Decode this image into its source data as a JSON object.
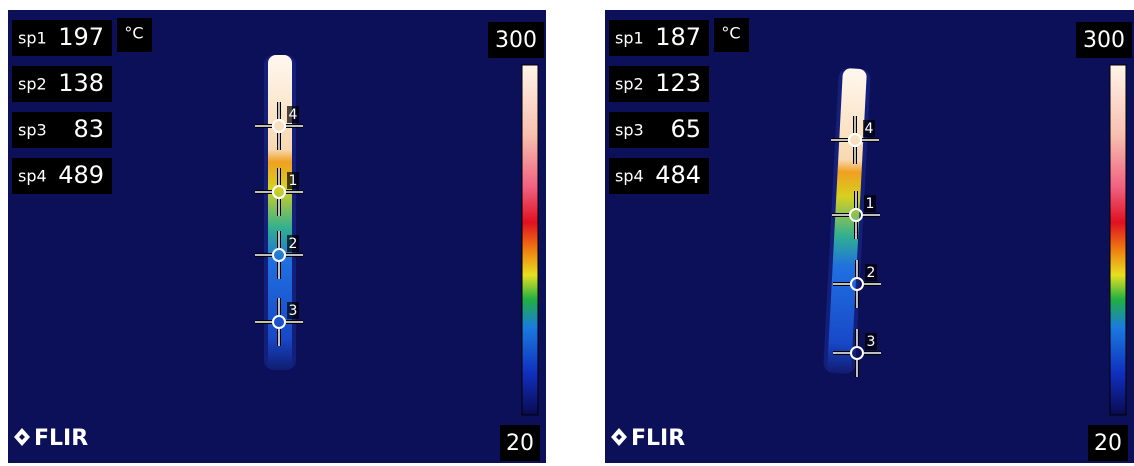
{
  "panels": [
    {
      "spots": [
        {
          "label": "sp1",
          "value": 197
        },
        {
          "label": "sp2",
          "value": 138
        },
        {
          "label": "sp3",
          "value": 83
        },
        {
          "label": "sp4",
          "value": 489
        }
      ],
      "unit": "°C",
      "scale_max": 300,
      "scale_min": 20,
      "markers": [
        "4",
        "1",
        "2",
        "3"
      ],
      "logo": "FLIR"
    },
    {
      "spots": [
        {
          "label": "sp1",
          "value": 187
        },
        {
          "label": "sp2",
          "value": 123
        },
        {
          "label": "sp3",
          "value": 65
        },
        {
          "label": "sp4",
          "value": 484
        }
      ],
      "unit": "°C",
      "scale_max": 300,
      "scale_min": 20,
      "markers": [
        "4",
        "1",
        "2",
        "3"
      ],
      "logo": "FLIR"
    }
  ]
}
